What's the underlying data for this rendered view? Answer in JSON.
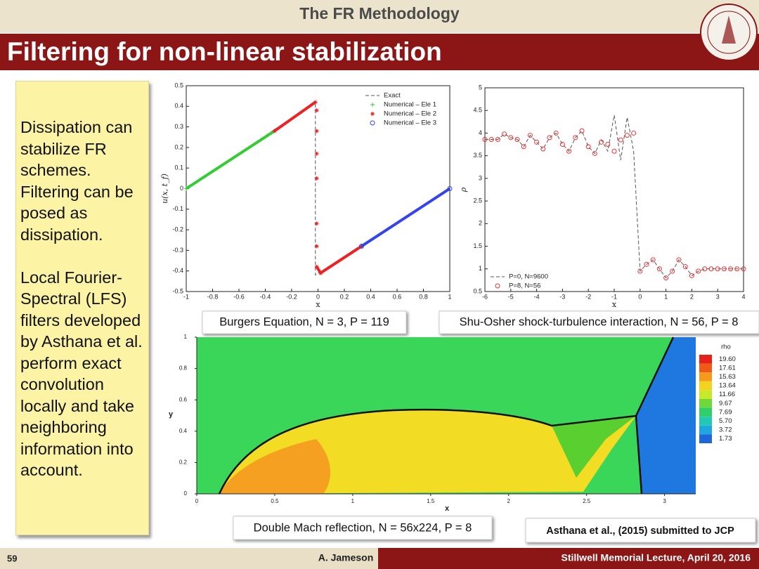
{
  "header": {
    "section": "The FR Methodology",
    "title": "Filtering for non-linear stabilization"
  },
  "sidebar": {
    "paragraphs": [
      "Dissipation can stabilize FR schemes. Filtering can be posed as dissipation.",
      "Local Fourier-Spectral (LFS) filters developed by Asthana et al. perform exact convolution locally and take neighboring information into account."
    ]
  },
  "charts": [
    {
      "type": "line",
      "caption": "Burgers Equation, N = 3, P = 119",
      "xlabel": "x",
      "ylabel": "u(x, t_f)",
      "xlim": [
        -1,
        1
      ],
      "xticks": [
        -1,
        -0.8,
        -0.6,
        -0.4,
        -0.2,
        0,
        0.2,
        0.4,
        0.6,
        0.8,
        1
      ],
      "ylim": [
        -0.5,
        0.5
      ],
      "yticks": [
        -0.5,
        -0.4,
        -0.3,
        -0.2,
        -0.1,
        0,
        0.1,
        0.2,
        0.3,
        0.4,
        0.5
      ],
      "legend": "upper right",
      "series": [
        {
          "name": "Exact",
          "color": "#555555",
          "style": "dashed",
          "x": [
            -1,
            -0.02,
            -0.02,
            1
          ],
          "values": [
            0,
            0.42,
            -0.42,
            0
          ]
        },
        {
          "name": "Numerical – Ele 1",
          "color": "#33cc33",
          "style": "thick",
          "x": [
            -1,
            -0.33
          ],
          "values": [
            0,
            0.28
          ]
        },
        {
          "name": "Numerical – Ele 2",
          "color": "#ee2222",
          "style": "thick",
          "x": [
            -0.33,
            -0.02,
            -0.01,
            -0.01,
            -0.01,
            -0.01,
            -0.01,
            -0.01,
            -0.01,
            -0.01,
            -0.01,
            -0.01,
            -0.01,
            -0.01,
            -0.01,
            -0.01,
            0.02,
            0.33
          ],
          "values": [
            0.28,
            0.42,
            null,
            0.38,
            null,
            0.28,
            null,
            0.17,
            null,
            0.05,
            null,
            -0.17,
            null,
            -0.28,
            null,
            -0.38,
            -0.41,
            -0.28
          ]
        },
        {
          "name": "Numerical – Ele 3",
          "color": "#3344ee",
          "style": "thick",
          "x": [
            0.33,
            1
          ],
          "values": [
            -0.28,
            0
          ]
        }
      ]
    },
    {
      "type": "line",
      "caption": "Shu-Osher shock-turbulence interaction, N = 56, P = 8",
      "xlabel": "x",
      "ylabel": "ρ",
      "xlim": [
        -6,
        4
      ],
      "xticks": [
        -6,
        -5,
        -4,
        -3,
        -2,
        -1,
        0,
        1,
        2,
        3,
        4
      ],
      "ylim": [
        0.5,
        5
      ],
      "yticks": [
        0.5,
        1,
        1.5,
        2,
        2.5,
        3,
        3.5,
        4,
        4.5,
        5
      ],
      "legend": "lower left",
      "x": [
        -6,
        -5.75,
        -5.5,
        -5.25,
        -5,
        -4.75,
        -4.5,
        -4.25,
        -4,
        -3.75,
        -3.5,
        -3.25,
        -3,
        -2.75,
        -2.5,
        -2.25,
        -2,
        -1.75,
        -1.5,
        -1.25,
        -1,
        -0.75,
        -0.5,
        -0.25,
        0,
        0.25,
        0.5,
        0.75,
        1,
        1.25,
        1.5,
        1.75,
        2,
        2.25,
        2.5,
        2.75,
        3,
        3.25,
        3.5,
        3.75,
        4
      ],
      "series": [
        {
          "name": "P=0, N=9600",
          "color": "#555555",
          "style": "dashed",
          "values": [
            3.86,
            3.86,
            3.86,
            3.98,
            3.9,
            3.86,
            3.7,
            3.95,
            3.8,
            3.65,
            3.9,
            4.0,
            3.75,
            3.6,
            3.9,
            4.05,
            3.7,
            3.55,
            3.85,
            3.6,
            4.4,
            3.4,
            4.35,
            3.6,
            0.95,
            1.1,
            1.2,
            1.0,
            0.8,
            0.95,
            1.2,
            1.05,
            0.85,
            0.95,
            1.0,
            1.0,
            1.0,
            1.0,
            1.0,
            1.0,
            1.0
          ]
        },
        {
          "name": "P=8, N=56",
          "color": "#ee3333",
          "style": "markers",
          "values": [
            3.86,
            3.86,
            3.86,
            3.98,
            3.9,
            3.86,
            3.7,
            3.95,
            3.8,
            3.65,
            3.9,
            4.0,
            3.75,
            3.6,
            3.9,
            4.05,
            3.7,
            3.55,
            3.8,
            3.75,
            3.6,
            3.85,
            3.95,
            4.0,
            0.95,
            1.1,
            1.2,
            1.0,
            0.8,
            0.95,
            1.2,
            1.05,
            0.85,
            0.95,
            1.0,
            1.0,
            1.0,
            1.0,
            1.0,
            1.0,
            1.0
          ]
        }
      ]
    }
  ],
  "mach": {
    "caption": "Double Mach reflection, N = 56x224, P = 8",
    "xlabel": "x",
    "ylabel": "y",
    "xlim": [
      0,
      3.2
    ],
    "xticks": [
      0,
      0.5,
      1,
      1.5,
      2,
      2.5,
      3
    ],
    "ylim": [
      0,
      1
    ],
    "yticks": [
      0,
      0.2,
      0.4,
      0.6,
      0.8,
      1
    ],
    "colorbar": {
      "title": "rho",
      "levels": [
        {
          "value": 19.6,
          "label": "19.60"
        },
        17.61,
        15.63,
        13.64,
        11.66,
        9.67,
        7.69,
        {
          "value": 5.7,
          "label": "5.70"
        },
        3.72,
        1.73
      ],
      "colors": [
        "#e8201a",
        "#f05a18",
        "#f59a1c",
        "#f2d41e",
        "#c8e82a",
        "#6fd83a",
        "#2fcf6a",
        "#22c8b4",
        "#1ea6e0",
        "#1e66dc"
      ]
    }
  },
  "citation": "Asthana et al., (2015) submitted to JCP",
  "footer": {
    "page": "59",
    "author": "A. Jameson",
    "event": "Stillwell Memorial Lecture, April 20, 2016"
  }
}
